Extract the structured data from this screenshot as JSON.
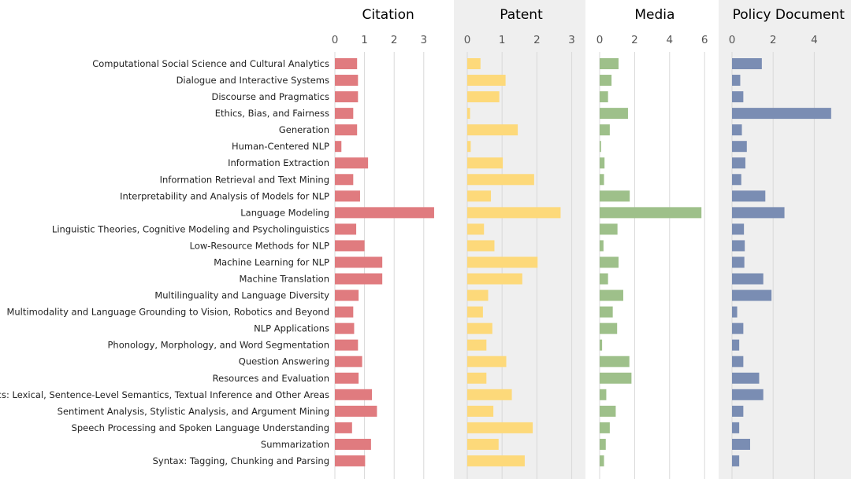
{
  "chart_data": {
    "type": "bar",
    "orientation": "horizontal",
    "categories": [
      "Computational Social Science and Cultural Analytics",
      "Dialogue and Interactive Systems",
      "Discourse and Pragmatics",
      "Ethics, Bias, and Fairness",
      "Generation",
      "Human-Centered NLP",
      "Information Extraction",
      "Information Retrieval and Text Mining",
      "Interpretability and Analysis of Models for NLP",
      "Language Modeling",
      "Linguistic Theories, Cognitive Modeling and Psycholinguistics",
      "Low-Resource Methods for NLP",
      "Machine Learning for NLP",
      "Machine Translation",
      "Multilinguality and Language Diversity",
      "Multimodality and Language Grounding to Vision, Robotics and Beyond",
      "NLP Applications",
      "Phonology, Morphology, and Word Segmentation",
      "Question Answering",
      "Resources and Evaluation",
      "Semantics: Lexical, Sentence-Level Semantics, Textual Inference and Other Areas",
      "Sentiment Analysis, Stylistic Analysis, and Argument Mining",
      "Speech Processing and Spoken Language Understanding",
      "Summarization",
      "Syntax: Tagging, Chunking and Parsing"
    ],
    "panels": [
      {
        "title": "Citation",
        "color": "#e07b7f",
        "shaded": false,
        "xlim": [
          0,
          3.6
        ],
        "ticks": [
          0,
          1,
          2,
          3
        ],
        "values": [
          0.75,
          0.78,
          0.78,
          0.62,
          0.75,
          0.22,
          1.12,
          0.62,
          0.85,
          3.35,
          0.72,
          1.0,
          1.6,
          1.6,
          0.8,
          0.62,
          0.65,
          0.78,
          0.92,
          0.8,
          1.25,
          1.42,
          0.58,
          1.22,
          1.02
        ]
      },
      {
        "title": "Patent",
        "color": "#fdd97a",
        "shaded": true,
        "xlim": [
          0,
          3.1
        ],
        "ticks": [
          0,
          1,
          2,
          3
        ],
        "values": [
          0.38,
          1.1,
          0.92,
          0.08,
          1.45,
          0.1,
          1.02,
          1.92,
          0.68,
          2.68,
          0.48,
          0.78,
          2.02,
          1.58,
          0.6,
          0.45,
          0.72,
          0.55,
          1.12,
          0.55,
          1.28,
          0.75,
          1.88,
          0.9,
          1.65
        ]
      },
      {
        "title": "Media",
        "color": "#9ec08a",
        "shaded": false,
        "xlim": [
          0,
          6.3
        ],
        "ticks": [
          0,
          2,
          4,
          6
        ],
        "values": [
          1.08,
          0.68,
          0.48,
          1.62,
          0.58,
          0.08,
          0.28,
          0.25,
          1.72,
          5.82,
          1.02,
          0.22,
          1.08,
          0.48,
          1.35,
          0.75,
          1.0,
          0.14,
          1.7,
          1.82,
          0.38,
          0.92,
          0.58,
          0.35,
          0.25
        ]
      },
      {
        "title": "Policy Document",
        "color": "#7a8db3",
        "shaded": true,
        "xlim": [
          0,
          5.5
        ],
        "ticks": [
          0,
          2,
          4
        ],
        "values": [
          1.45,
          0.4,
          0.55,
          4.82,
          0.48,
          0.72,
          0.65,
          0.45,
          1.62,
          2.55,
          0.58,
          0.62,
          0.6,
          1.52,
          1.92,
          0.25,
          0.55,
          0.35,
          0.55,
          1.32,
          1.52,
          0.55,
          0.35,
          0.88,
          0.35
        ]
      }
    ],
    "grid": true,
    "legend": "none"
  }
}
